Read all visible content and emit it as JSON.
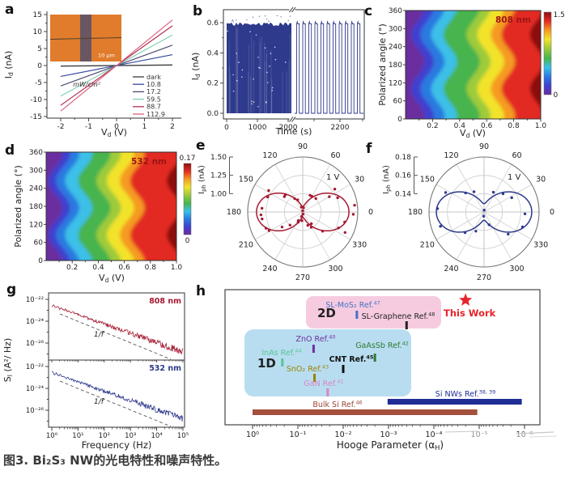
{
  "figure": {
    "caption": "图3. Bi₂S₃ NW的光电特性和噪声特性。",
    "panel_labels": [
      "a",
      "b",
      "c",
      "d",
      "e",
      "f",
      "g",
      "h"
    ]
  },
  "chart_data": [
    {
      "id": "a",
      "type": "line",
      "xlabel": "V_{d} (V)",
      "ylabel": "I_{d} (nA)",
      "xticks": [
        -2,
        -1,
        0,
        1,
        2
      ],
      "yticks": [
        -15,
        -10,
        -5,
        0,
        5,
        10,
        15
      ],
      "xlim": [
        -2.3,
        2.3
      ],
      "ylim": [
        -17,
        17
      ],
      "legend_unit": "mW/cm²",
      "inset_scalebar": "10 μm",
      "series": [
        {
          "name": "dark",
          "slope_nA_per_V": 0.08,
          "color": "#3b3b3b"
        },
        {
          "name": "10.8",
          "slope_nA_per_V": 1.6,
          "color": "#37479e"
        },
        {
          "name": "17.2",
          "slope_nA_per_V": 3.0,
          "color": "#4c4a70"
        },
        {
          "name": "59.5",
          "slope_nA_per_V": 4.5,
          "color": "#7fd0b2"
        },
        {
          "name": "88.7",
          "slope_nA_per_V": 5.85,
          "color": "#b23052"
        },
        {
          "name": "112.9",
          "slope_nA_per_V": 6.7,
          "color": "#dd5f7d"
        }
      ]
    },
    {
      "id": "b",
      "type": "line",
      "xlabel": "Time (s)",
      "ylabel": "I_{d} (nA)",
      "xticks": [
        "0",
        "1000",
        "2000",
        "2200"
      ],
      "yticks": [
        "0.0",
        "0.2",
        "0.4",
        "0.6"
      ],
      "axis_break": true,
      "on_level_nA": 0.58,
      "off_level_nA": 0.0,
      "pulses_after_break": 11,
      "color": "#2e3a8c"
    },
    {
      "id": "c",
      "type": "heatmap",
      "title": "808 nm",
      "title_color": "#9e1414",
      "xlabel": "V_{d} (V)",
      "ylabel": "Polarized angle (°)",
      "xticks": [
        0.2,
        0.4,
        0.6,
        0.8,
        1.0
      ],
      "yticks": [
        0,
        60,
        120,
        180,
        240,
        300,
        360
      ],
      "colorbar_max": "1.5",
      "colorbar_min": "0",
      "wave": {
        "amp": 0.05,
        "period": 180,
        "phase": 100
      },
      "bands": [
        {
          "v": 0.0,
          "color": "#6a2d9e"
        },
        {
          "v": 0.09,
          "color": "#4040cf"
        },
        {
          "v": 0.16,
          "color": "#2a7ae0"
        },
        {
          "v": 0.24,
          "color": "#3cc0e8"
        },
        {
          "v": 0.33,
          "color": "#46b44e"
        },
        {
          "v": 0.5,
          "color": "#9ecb3a"
        },
        {
          "v": 0.58,
          "color": "#f2e32c"
        },
        {
          "v": 0.68,
          "color": "#f59a23"
        },
        {
          "v": 0.76,
          "color": "#e22c22"
        },
        {
          "v": 0.97,
          "color": "#8c0f0f"
        }
      ]
    },
    {
      "id": "d",
      "type": "heatmap",
      "title": "532 nm",
      "title_color": "#9e1414",
      "xlabel": "V_{d} (V)",
      "ylabel": "Polarized angle (°)",
      "xticks": [
        0.2,
        0.4,
        0.6,
        0.8,
        1.0
      ],
      "yticks": [
        0,
        60,
        120,
        180,
        240,
        300,
        360
      ],
      "colorbar_max": "0.17",
      "colorbar_min": "0",
      "wave": {
        "amp": 0.055,
        "period": 180,
        "phase": 85
      },
      "bands": [
        {
          "v": 0.0,
          "color": "#6a2d9e"
        },
        {
          "v": 0.07,
          "color": "#4040cf"
        },
        {
          "v": 0.13,
          "color": "#2a7ae0"
        },
        {
          "v": 0.2,
          "color": "#3cc0e8"
        },
        {
          "v": 0.3,
          "color": "#46b44e"
        },
        {
          "v": 0.44,
          "color": "#9ecb3a"
        },
        {
          "v": 0.52,
          "color": "#f2e32c"
        },
        {
          "v": 0.62,
          "color": "#f59a23"
        },
        {
          "v": 0.7,
          "color": "#e22c22"
        },
        {
          "v": 0.98,
          "color": "#8c0f0f"
        }
      ]
    },
    {
      "id": "e",
      "type": "polar",
      "rlabel": "I_{ph} (nA)",
      "rticks": [
        "1.00",
        "1.25",
        "1.50"
      ],
      "annotation": "1 V",
      "angle_tick_step": 30,
      "color": "#a51931",
      "model": {
        "rmin": 0.75,
        "rstep": 0.25,
        "base": 0.82,
        "amp": 0.56
      },
      "n_points": 36,
      "scatter_noise": 0.13
    },
    {
      "id": "f",
      "type": "polar",
      "rlabel": "I_{ph} (nA)",
      "rticks": [
        "0.14",
        "0.16",
        "0.18"
      ],
      "annotation": "1 V",
      "angle_tick_step": 30,
      "color": "#2e3a8c",
      "model": {
        "rmin": 0.12,
        "rstep": 0.02,
        "base": 0.129,
        "amp": 0.043
      },
      "n_points": 16,
      "scatter_noise": 0.009
    },
    {
      "id": "g",
      "type": "line",
      "xlabel": "Frequency (Hz)",
      "ylabel": "S_{I} (A²/ Hz)",
      "xticks": [
        "10⁰",
        "10¹",
        "10²",
        "10³",
        "10⁴",
        "10⁵"
      ],
      "yticks": [
        "10⁻²²",
        "10⁻²⁴",
        "10⁻²⁶"
      ],
      "guide_label": "1/f",
      "subplots": [
        {
          "label": "808 nm",
          "color": "#a51931"
        },
        {
          "label": "532 nm",
          "color": "#2e3a8c"
        }
      ]
    },
    {
      "id": "h",
      "type": "scatter",
      "xlabel": "Hooge Parameter (α_{H})",
      "xticks": [
        "10⁰",
        "10⁻¹",
        "10⁻²",
        "10⁻³",
        "10⁻⁴",
        "10⁻⁵",
        "10⁻⁶"
      ],
      "regions": [
        {
          "name": "2D",
          "color": "#f6cbe0"
        },
        {
          "name": "1D",
          "color": "#b8ddf0"
        }
      ],
      "points": [
        {
          "label": "SL-MoS₂ Ref.^{47}",
          "alpha": "5e-3",
          "color": "#4472c4"
        },
        {
          "label": "SL-Graphene Ref.^{48}",
          "alpha": "4e-4",
          "color": "#222222"
        },
        {
          "label": "ZnO Ref.^{40}",
          "alpha": "4.5e-2",
          "color": "#7030a0"
        },
        {
          "label": "InAs Ref.^{44}",
          "alpha": "2.2e-1",
          "color": "#56c596"
        },
        {
          "label": "GaAsSb Ref.^{42}",
          "alpha": "2e-3",
          "color": "#2f7a33"
        },
        {
          "label": "CNT Ref.^{45}",
          "alpha": "1e-2",
          "color": "#111111"
        },
        {
          "label": "SnO₂ Ref.^{43}",
          "alpha": "4.3e-2",
          "color": "#9b8300"
        },
        {
          "label": "GaN Ref.^{41}",
          "alpha": "2.2e-2",
          "color": "#d886c6"
        }
      ],
      "bars": [
        {
          "label": "Si NWs Ref.^{38, 39}",
          "from": "1.05e-3",
          "to": "1.15e-6",
          "color": "#1f2d96",
          "label_color": "#1f2d96"
        },
        {
          "label": "Bulk Si Ref.^{46}",
          "from": "1.0",
          "to": "1.1e-5",
          "color": "#a5503c",
          "label_color": "#9c4632"
        }
      ],
      "highlight": {
        "label": "This Work",
        "alpha": "2e-5",
        "color": "#e8232a"
      }
    }
  ]
}
